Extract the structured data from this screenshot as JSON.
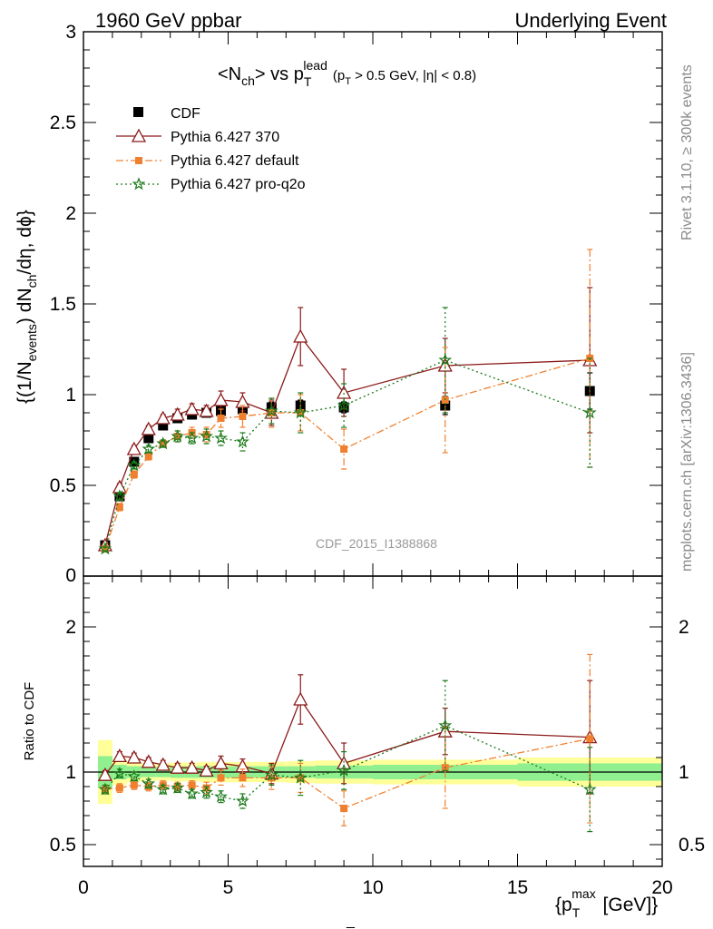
{
  "header": {
    "left": "1960 GeV ppbar",
    "right": "Underlying Event"
  },
  "side_texts": {
    "rivet": "Rivet 3.1.10, ≥ 300k events",
    "mcplots": "mcplots.cern.ch [arXiv:1306.3436]"
  },
  "watermark": "CDF_2015_I1388868",
  "bottom_stray": "_",
  "title": {
    "main": "<N",
    "main_sub": "ch",
    "main_rest": "> vs p",
    "main_sup": "lead",
    "main_sub2": "T",
    "cut": "(p",
    "cut_sub": "T",
    "cut_rest": " > 0.5 GeV, |η| < 0.8)"
  },
  "ylabel_top": {
    "a": "{(1/N",
    "a_sub": "events",
    "b": ") dN",
    "b_sub": "ch",
    "c": "/dη, dϕ}"
  },
  "ylabel_bottom": "Ratio to CDF",
  "xlabel": {
    "a": "{p",
    "a_sub": "T",
    "a_sup": "max",
    "b": " [GeV]}"
  },
  "chart_data": [
    {
      "type": "scatter",
      "xlim": [
        0,
        20
      ],
      "ylim": [
        0,
        3
      ],
      "y_ticks": [
        "0.5",
        "1",
        "1.5",
        "2",
        "2.5",
        "3"
      ],
      "y_tick_values": [
        0.5,
        1,
        1.5,
        2,
        2.5,
        3
      ],
      "y_zero_label": "0",
      "legend_position": "top-left",
      "series": [
        {
          "name": "CDF",
          "marker": "square",
          "color": "#000000",
          "x": [
            0.75,
            1.25,
            1.75,
            2.25,
            2.75,
            3.25,
            3.75,
            4.25,
            4.75,
            5.5,
            6.5,
            7.5,
            9.0,
            12.5,
            17.5
          ],
          "y": [
            0.17,
            0.44,
            0.63,
            0.76,
            0.83,
            0.87,
            0.89,
            0.9,
            0.91,
            0.92,
            0.93,
            0.94,
            0.93,
            0.94,
            1.02
          ],
          "err": [
            0.01,
            0.02,
            0.02,
            0.02,
            0.02,
            0.02,
            0.02,
            0.02,
            0.02,
            0.02,
            0.03,
            0.03,
            0.03,
            0.05,
            0.1
          ]
        },
        {
          "name": "Pythia 6.427 370",
          "marker": "triangle-open",
          "color": "#8b1a1a",
          "line": "solid",
          "x": [
            0.75,
            1.25,
            1.75,
            2.25,
            2.75,
            3.25,
            3.75,
            4.25,
            4.75,
            5.5,
            6.5,
            7.5,
            9.0,
            12.5,
            17.5
          ],
          "y": [
            0.17,
            0.49,
            0.7,
            0.81,
            0.87,
            0.89,
            0.92,
            0.91,
            0.97,
            0.96,
            0.9,
            1.32,
            1.01,
            1.16,
            1.19
          ],
          "err": [
            0.01,
            0.02,
            0.02,
            0.02,
            0.02,
            0.03,
            0.03,
            0.03,
            0.05,
            0.05,
            0.07,
            0.16,
            0.13,
            0.15,
            0.4
          ]
        },
        {
          "name": "Pythia 6.427 default",
          "marker": "square-small",
          "color": "#f08030",
          "line": "dashdot",
          "x": [
            0.75,
            1.25,
            1.75,
            2.25,
            2.75,
            3.25,
            3.75,
            4.25,
            4.75,
            5.5,
            6.5,
            7.5,
            9.0,
            12.5,
            17.5
          ],
          "y": [
            0.15,
            0.38,
            0.56,
            0.66,
            0.73,
            0.77,
            0.79,
            0.78,
            0.87,
            0.88,
            0.9,
            0.9,
            0.7,
            0.97,
            1.2
          ],
          "err": [
            0.01,
            0.02,
            0.02,
            0.02,
            0.02,
            0.03,
            0.03,
            0.04,
            0.05,
            0.06,
            0.08,
            0.1,
            0.11,
            0.29,
            0.6
          ]
        },
        {
          "name": "Pythia 6.427 pro-q2o",
          "marker": "star",
          "color": "#1a7a1a",
          "line": "dotted",
          "x": [
            0.75,
            1.25,
            1.75,
            2.25,
            2.75,
            3.25,
            3.75,
            4.25,
            4.75,
            5.5,
            6.5,
            7.5,
            9.0,
            12.5,
            17.5
          ],
          "y": [
            0.15,
            0.44,
            0.61,
            0.7,
            0.73,
            0.77,
            0.76,
            0.77,
            0.76,
            0.74,
            0.91,
            0.9,
            0.94,
            1.19,
            0.9
          ],
          "err": [
            0.01,
            0.02,
            0.02,
            0.02,
            0.02,
            0.03,
            0.03,
            0.04,
            0.04,
            0.05,
            0.07,
            0.11,
            0.12,
            0.29,
            0.3
          ]
        }
      ]
    },
    {
      "type": "scatter",
      "xlim": [
        0,
        20
      ],
      "ylim": [
        0.35,
        2.35
      ],
      "x_ticks": [
        "0",
        "5",
        "10",
        "15",
        "20"
      ],
      "x_tick_values": [
        0,
        5,
        10,
        15,
        20
      ],
      "y_ticks": [
        "0.5",
        "1",
        "2"
      ],
      "y_tick_values": [
        0.5,
        1,
        2
      ],
      "bands": {
        "x_edges": [
          0.5,
          1.0,
          1.5,
          2.0,
          2.5,
          3.0,
          3.5,
          4.0,
          4.5,
          5.0,
          6.0,
          7.0,
          8.0,
          10.0,
          15.0,
          20.0
        ],
        "inner": [
          0.11,
          0.05,
          0.04,
          0.035,
          0.035,
          0.04,
          0.04,
          0.04,
          0.04,
          0.04,
          0.04,
          0.04,
          0.045,
          0.05,
          0.06
        ],
        "outer": [
          0.22,
          0.09,
          0.07,
          0.06,
          0.06,
          0.065,
          0.065,
          0.07,
          0.07,
          0.07,
          0.07,
          0.075,
          0.08,
          0.085,
          0.1
        ],
        "inner_color": "#90f090",
        "outer_color": "#ffff99"
      },
      "series": [
        {
          "name": "Pythia 6.427 370",
          "x": [
            0.75,
            1.25,
            1.75,
            2.25,
            2.75,
            3.25,
            3.75,
            4.25,
            4.75,
            5.5,
            6.5,
            7.5,
            9.0,
            12.5,
            17.5
          ],
          "y": [
            0.98,
            1.11,
            1.1,
            1.07,
            1.05,
            1.03,
            1.03,
            1.01,
            1.06,
            1.04,
            0.99,
            1.5,
            1.06,
            1.28,
            1.24
          ],
          "err": [
            0.03,
            0.03,
            0.03,
            0.03,
            0.03,
            0.03,
            0.03,
            0.03,
            0.05,
            0.05,
            0.07,
            0.17,
            0.14,
            0.16,
            0.39
          ]
        },
        {
          "name": "Pythia 6.427 default",
          "x": [
            0.75,
            1.25,
            1.75,
            2.25,
            2.75,
            3.25,
            3.75,
            4.25,
            4.75,
            5.5,
            6.5,
            7.5,
            9.0,
            12.5,
            17.5
          ],
          "y": [
            0.88,
            0.89,
            0.91,
            0.9,
            0.91,
            0.9,
            0.91,
            0.89,
            0.96,
            0.96,
            0.96,
            0.96,
            0.75,
            1.03,
            1.23
          ],
          "err": [
            0.03,
            0.03,
            0.03,
            0.03,
            0.03,
            0.03,
            0.03,
            0.04,
            0.05,
            0.06,
            0.08,
            0.1,
            0.12,
            0.28,
            0.58
          ]
        },
        {
          "name": "Pythia 6.427 pro-q2o",
          "x": [
            0.75,
            1.25,
            1.75,
            2.25,
            2.75,
            3.25,
            3.75,
            4.25,
            4.75,
            5.5,
            6.5,
            7.5,
            9.0,
            12.5,
            17.5
          ],
          "y": [
            0.88,
            0.99,
            0.97,
            0.92,
            0.88,
            0.89,
            0.85,
            0.86,
            0.83,
            0.8,
            0.98,
            0.96,
            1.01,
            1.32,
            0.88
          ],
          "err": [
            0.03,
            0.03,
            0.03,
            0.03,
            0.03,
            0.03,
            0.03,
            0.04,
            0.04,
            0.05,
            0.07,
            0.12,
            0.13,
            0.31,
            0.29
          ]
        }
      ]
    }
  ]
}
